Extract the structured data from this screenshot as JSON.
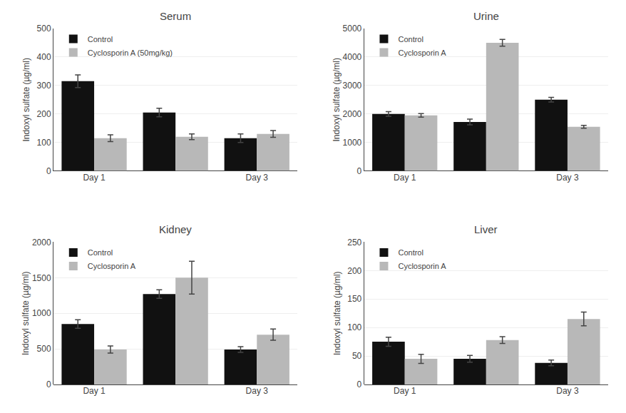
{
  "chart_data": [
    {
      "type": "bar",
      "title": "Serum",
      "ylabel": "Indoxyl sulfate (µg/ml)",
      "categories": [
        "Day 1",
        null,
        "Day 3"
      ],
      "series": [
        {
          "name": "Control",
          "color": "#111111",
          "values": [
            315,
            205,
            115
          ],
          "errors": [
            22,
            15,
            15
          ]
        },
        {
          "name": "Cyclosporin A (50mg/kg)",
          "color": "#b8b8b8",
          "values": [
            115,
            120,
            130
          ],
          "errors": [
            12,
            10,
            12
          ]
        }
      ],
      "ylim": [
        0,
        500
      ],
      "yticks": [
        0,
        100,
        200,
        300,
        400,
        500
      ],
      "legend": "upper left"
    },
    {
      "type": "bar",
      "title": "Urine",
      "ylabel": "Indoxyl sulfate (µg/ml)",
      "categories": [
        "Day 1",
        null,
        "Day 3"
      ],
      "series": [
        {
          "name": "Control",
          "color": "#111111",
          "values": [
            2000,
            1720,
            2500
          ],
          "errors": [
            80,
            100,
            80
          ]
        },
        {
          "name": "Cyclosporin A",
          "color": "#b8b8b8",
          "values": [
            1950,
            4500,
            1550
          ],
          "errors": [
            60,
            120,
            50
          ]
        }
      ],
      "ylim": [
        0,
        5000
      ],
      "yticks": [
        0,
        1000,
        2000,
        3000,
        4000,
        5000
      ],
      "legend": "upper left"
    },
    {
      "type": "bar",
      "title": "Kidney",
      "ylabel": "Indoxyl sulfate (µg/ml)",
      "categories": [
        "Day 1",
        null,
        "Day 3"
      ],
      "series": [
        {
          "name": "Control",
          "color": "#111111",
          "values": [
            850,
            1270,
            490
          ],
          "errors": [
            60,
            60,
            40
          ]
        },
        {
          "name": "Cyclosporin A",
          "color": "#b8b8b8",
          "values": [
            490,
            1500,
            700
          ],
          "errors": [
            50,
            230,
            80
          ]
        }
      ],
      "ylim": [
        0,
        2000
      ],
      "yticks": [
        0,
        500,
        1000,
        1500,
        2000
      ],
      "legend": "upper left"
    },
    {
      "type": "bar",
      "title": "Liver",
      "ylabel": "Indoxyl sulfate (µg/ml)",
      "categories": [
        "Day 1",
        null,
        "Day 3"
      ],
      "series": [
        {
          "name": "Control",
          "color": "#111111",
          "values": [
            75,
            45,
            38
          ],
          "errors": [
            8,
            6,
            5
          ]
        },
        {
          "name": "Cyclosporin A",
          "color": "#b8b8b8",
          "values": [
            45,
            78,
            115
          ],
          "errors": [
            8,
            6,
            12
          ]
        }
      ],
      "ylim": [
        0,
        250
      ],
      "yticks": [
        0,
        50,
        100,
        150,
        200,
        250
      ],
      "legend": "upper left"
    }
  ]
}
